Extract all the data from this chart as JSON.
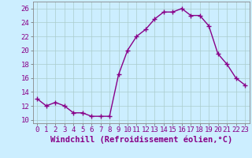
{
  "x": [
    0,
    1,
    2,
    3,
    4,
    5,
    6,
    7,
    8,
    9,
    10,
    11,
    12,
    13,
    14,
    15,
    16,
    17,
    18,
    19,
    20,
    21,
    22,
    23
  ],
  "y": [
    13,
    12,
    12.5,
    12,
    11,
    11,
    10.5,
    10.5,
    10.5,
    16.5,
    20,
    22,
    23,
    24.5,
    25.5,
    25.5,
    26,
    25,
    25,
    23.5,
    19.5,
    18,
    16,
    15
  ],
  "line_color": "#880088",
  "background_color": "#cceeff",
  "grid_color": "#aacccc",
  "xlabel": "Windchill (Refroidissement éolien,°C)",
  "ylim": [
    9.5,
    27
  ],
  "yticks": [
    10,
    12,
    14,
    16,
    18,
    20,
    22,
    24,
    26
  ],
  "xticks": [
    0,
    1,
    2,
    3,
    4,
    5,
    6,
    7,
    8,
    9,
    10,
    11,
    12,
    13,
    14,
    15,
    16,
    17,
    18,
    19,
    20,
    21,
    22,
    23
  ],
  "xlim": [
    -0.5,
    23.5
  ],
  "line_width": 1.0,
  "marker_size": 4,
  "xlabel_fontsize": 7.5,
  "tick_fontsize": 6.5
}
